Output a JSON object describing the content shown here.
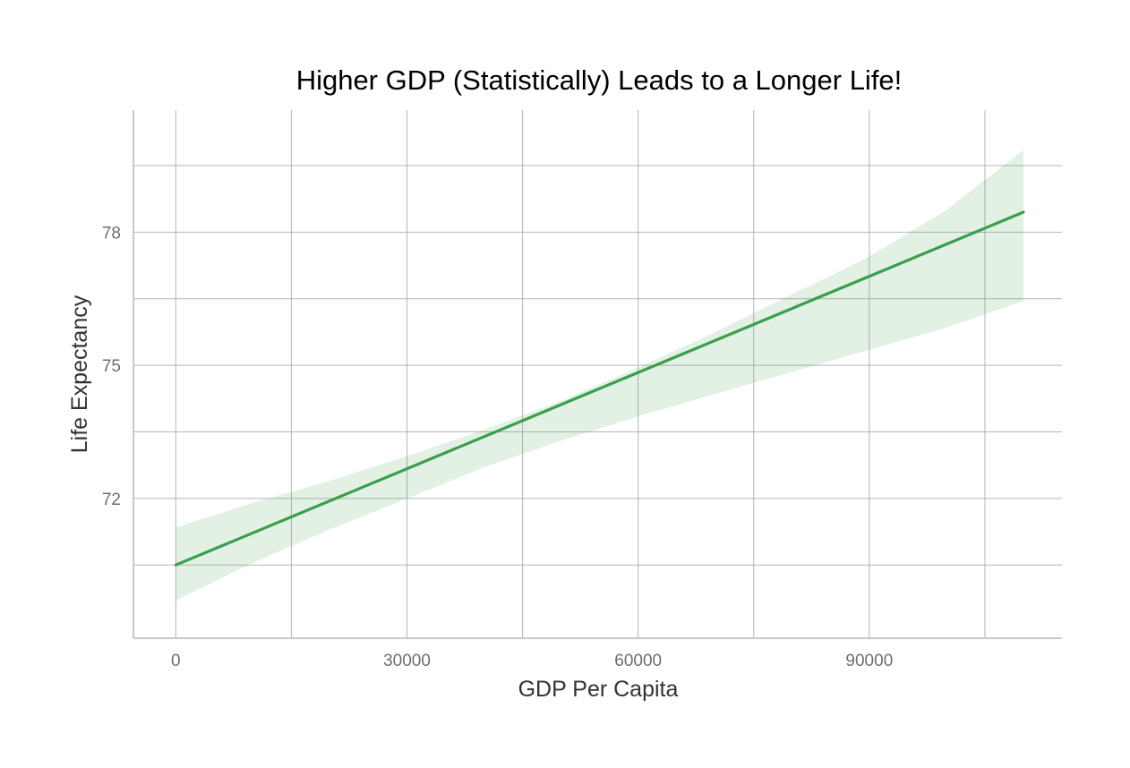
{
  "chart_data": {
    "type": "line",
    "title": "Higher GDP (Statistically) Leads to a Longer Life!",
    "xlabel": "GDP Per Capita",
    "ylabel": "Life Expectancy",
    "xlim": [
      -5500,
      115000
    ],
    "ylim": [
      68.85,
      80.75
    ],
    "x_ticks": [
      0,
      30000,
      60000,
      90000
    ],
    "x_gridlines": [
      0,
      15000,
      30000,
      45000,
      60000,
      75000,
      90000,
      105000
    ],
    "y_ticks": [
      72,
      75,
      78
    ],
    "y_tick_labels": [
      "72",
      "75",
      "78"
    ],
    "y_gridlines": [
      70.5,
      72,
      73.5,
      75,
      76.5,
      78,
      79.5
    ],
    "grid": true,
    "series": [
      {
        "kind": "regression_line",
        "color": "#3a9e4d",
        "x": [
          0,
          110000
        ],
        "y": [
          70.5,
          78.45
        ]
      },
      {
        "kind": "confidence_band",
        "color": "#3a9e4d",
        "x": [
          0,
          10000,
          20000,
          30000,
          40000,
          50000,
          60000,
          70000,
          80000,
          90000,
          100000,
          110000
        ],
        "lower": [
          69.7,
          70.55,
          71.3,
          72.0,
          72.7,
          73.3,
          73.85,
          74.35,
          74.85,
          75.35,
          75.85,
          76.45
        ],
        "upper": [
          71.35,
          71.9,
          72.4,
          72.95,
          73.55,
          74.2,
          74.95,
          75.75,
          76.6,
          77.45,
          78.5,
          79.85
        ]
      }
    ]
  }
}
